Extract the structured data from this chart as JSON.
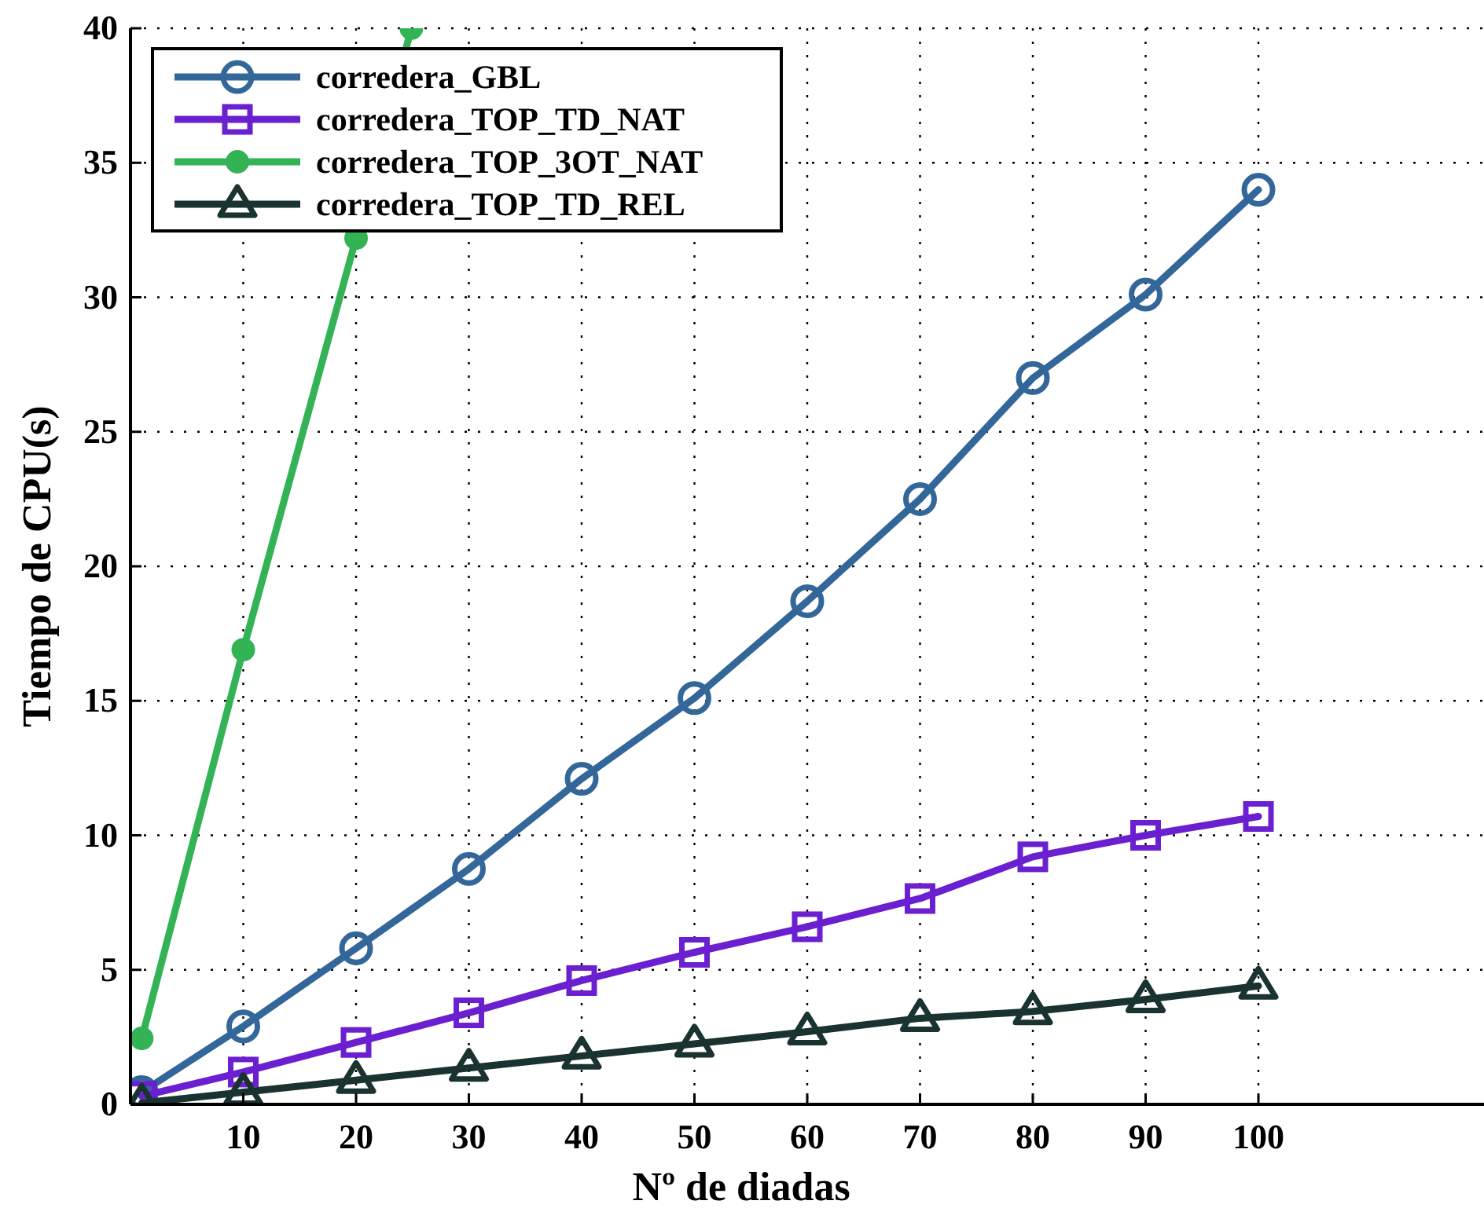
{
  "chart_data": {
    "type": "line",
    "xlabel": "Nº de diadas",
    "ylabel": "Tiempo de CPU(s)",
    "x": [
      1,
      10,
      20,
      30,
      40,
      50,
      60,
      70,
      80,
      90,
      100
    ],
    "series": [
      {
        "name": "corredera_GBL",
        "color": "#336699",
        "marker": "circle",
        "values": [
          0.45,
          2.9,
          5.8,
          8.75,
          12.1,
          15.1,
          18.7,
          22.5,
          27.0,
          30.1,
          34.0
        ]
      },
      {
        "name": "corredera_TOP_TD_NAT",
        "color": "#6a1fd0",
        "marker": "square",
        "values": [
          0.3,
          1.2,
          2.3,
          3.4,
          4.6,
          5.65,
          6.6,
          7.65,
          9.2,
          10.0,
          10.7
        ]
      },
      {
        "name": "corredera_TOP_3OT_NAT",
        "color": "#33b355",
        "marker": "circle_filled",
        "x": [
          1,
          10,
          20,
          24.9
        ],
        "values": [
          2.45,
          16.9,
          32.2,
          40
        ]
      },
      {
        "name": "corredera_TOP_TD_REL",
        "color": "#1a3330",
        "marker": "triangle",
        "values": [
          0.05,
          0.45,
          0.9,
          1.35,
          1.8,
          2.25,
          2.7,
          3.2,
          3.45,
          3.9,
          4.4
        ]
      }
    ],
    "xlim": [
      0,
      120
    ],
    "xticks": [
      10,
      20,
      30,
      40,
      50,
      60,
      70,
      80,
      90,
      100
    ],
    "ylim": [
      0,
      40
    ],
    "yticks": [
      0,
      5,
      10,
      15,
      20,
      25,
      30,
      35,
      40
    ],
    "grid": true,
    "legend": "top left",
    "line_style": "solid"
  }
}
